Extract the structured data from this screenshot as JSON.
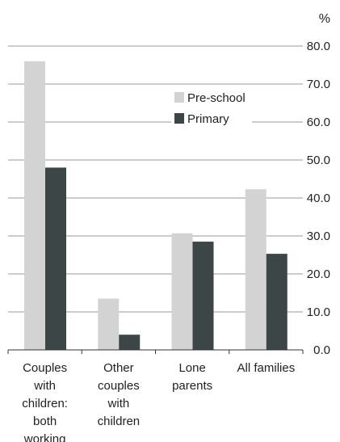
{
  "chart_data": {
    "type": "bar",
    "title": "",
    "xlabel": "",
    "ylabel": "",
    "unit": "%",
    "ylim": [
      0,
      80
    ],
    "yticks": [
      "0.0",
      "10.0",
      "20.0",
      "30.0",
      "40.0",
      "50.0",
      "60.0",
      "70.0",
      "80.0"
    ],
    "y_axis_position": "right",
    "grid": true,
    "legend": "center-right",
    "categories": [
      [
        "Couples",
        "with",
        "children:",
        "both",
        "working"
      ],
      [
        "Other",
        "couples",
        "with",
        "children"
      ],
      [
        "Lone",
        "parents"
      ],
      [
        "All families"
      ]
    ],
    "series": [
      {
        "name": "Pre-school",
        "color": "#d3d3d3",
        "values": [
          76,
          13.5,
          30.7,
          42.3
        ]
      },
      {
        "name": "Primary",
        "color": "#3d4646",
        "values": [
          48,
          4,
          28.5,
          25.3
        ]
      }
    ]
  }
}
